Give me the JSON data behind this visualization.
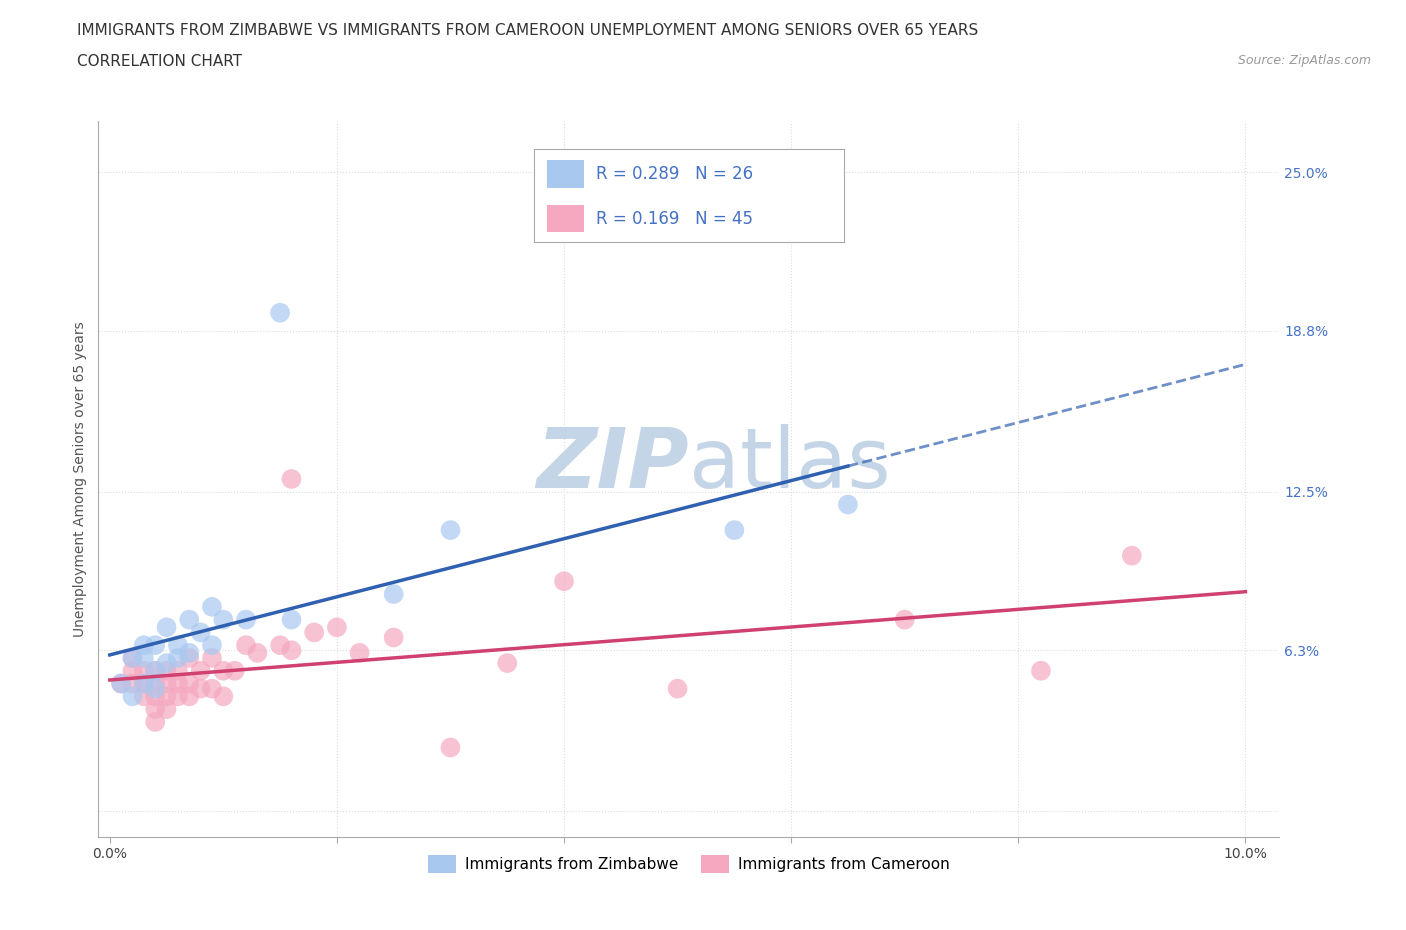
{
  "title_line1": "IMMIGRANTS FROM ZIMBABWE VS IMMIGRANTS FROM CAMEROON UNEMPLOYMENT AMONG SENIORS OVER 65 YEARS",
  "title_line2": "CORRELATION CHART",
  "source_text": "Source: ZipAtlas.com",
  "ylabel": "Unemployment Among Seniors over 65 years",
  "xlim": [
    -0.001,
    0.103
  ],
  "ylim": [
    -0.01,
    0.27
  ],
  "xticks": [
    0.0,
    0.02,
    0.04,
    0.06,
    0.08,
    0.1
  ],
  "xticklabels": [
    "0.0%",
    "",
    "",
    "",
    "",
    "10.0%"
  ],
  "ytick_positions": [
    0.0,
    0.063,
    0.125,
    0.188,
    0.25
  ],
  "ytick_labels": [
    "",
    "6.3%",
    "12.5%",
    "18.8%",
    "25.0%"
  ],
  "zimbabwe_color": "#A8C8F0",
  "cameroon_color": "#F5A8C0",
  "zimbabwe_line_color": "#3060B0",
  "cameroon_line_color": "#D04070",
  "watermark_text": "ZIPatlas",
  "watermark_color": "#C5D5E8",
  "legend_R1": "R = 0.289",
  "legend_N1": "N = 26",
  "legend_R2": "R = 0.169",
  "legend_N2": "N = 45",
  "legend_label1": "Immigrants from Zimbabwe",
  "legend_label2": "Immigrants from Cameroon",
  "zimbabwe_x": [
    0.001,
    0.002,
    0.002,
    0.003,
    0.003,
    0.003,
    0.004,
    0.004,
    0.004,
    0.005,
    0.005,
    0.006,
    0.006,
    0.007,
    0.007,
    0.008,
    0.009,
    0.009,
    0.01,
    0.012,
    0.015,
    0.016,
    0.025,
    0.03,
    0.055,
    0.065
  ],
  "zimbabwe_y": [
    0.05,
    0.045,
    0.06,
    0.05,
    0.06,
    0.065,
    0.048,
    0.055,
    0.065,
    0.058,
    0.072,
    0.06,
    0.065,
    0.062,
    0.075,
    0.07,
    0.065,
    0.08,
    0.075,
    0.075,
    0.195,
    0.075,
    0.085,
    0.11,
    0.11,
    0.12
  ],
  "cameroon_x": [
    0.001,
    0.002,
    0.002,
    0.002,
    0.003,
    0.003,
    0.003,
    0.004,
    0.004,
    0.004,
    0.004,
    0.004,
    0.005,
    0.005,
    0.005,
    0.005,
    0.006,
    0.006,
    0.006,
    0.007,
    0.007,
    0.007,
    0.008,
    0.008,
    0.009,
    0.009,
    0.01,
    0.01,
    0.011,
    0.012,
    0.013,
    0.015,
    0.016,
    0.016,
    0.018,
    0.02,
    0.022,
    0.025,
    0.03,
    0.035,
    0.04,
    0.05,
    0.07,
    0.082,
    0.09
  ],
  "cameroon_y": [
    0.05,
    0.05,
    0.055,
    0.06,
    0.045,
    0.05,
    0.055,
    0.035,
    0.04,
    0.045,
    0.05,
    0.055,
    0.04,
    0.045,
    0.05,
    0.055,
    0.045,
    0.05,
    0.055,
    0.045,
    0.05,
    0.06,
    0.048,
    0.055,
    0.048,
    0.06,
    0.045,
    0.055,
    0.055,
    0.065,
    0.062,
    0.065,
    0.13,
    0.063,
    0.07,
    0.072,
    0.062,
    0.068,
    0.025,
    0.058,
    0.09,
    0.048,
    0.075,
    0.055,
    0.1
  ],
  "grid_color": "#DDDDDD",
  "background_color": "#FFFFFF",
  "title_fontsize": 11,
  "axis_label_fontsize": 10,
  "tick_fontsize": 10,
  "legend_fontsize": 12
}
